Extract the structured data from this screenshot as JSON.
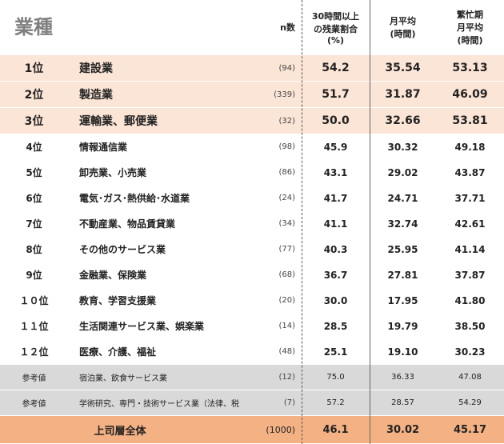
{
  "header": {
    "title": "業種",
    "n": "n数",
    "overtime": [
      "30時間以上",
      "の残業割合",
      "(%)"
    ],
    "avg": [
      "月平均",
      "(時間)"
    ],
    "busy": [
      "繁忙期",
      "月平均",
      "(時間)"
    ]
  },
  "top_rows": [
    {
      "rank": "1位",
      "name": "建設業",
      "n": "(94)",
      "overtime": "54.2",
      "avg": "35.54",
      "busy": "53.13"
    },
    {
      "rank": "2位",
      "name": "製造業",
      "n": "(339)",
      "overtime": "51.7",
      "avg": "31.87",
      "busy": "46.09"
    },
    {
      "rank": "3位",
      "name": "運輸業、郵便業",
      "n": "(32)",
      "overtime": "50.0",
      "avg": "32.66",
      "busy": "53.81"
    }
  ],
  "rows": [
    {
      "rank": "4位",
      "name": "情報通信業",
      "n": "(98)",
      "overtime": "45.9",
      "avg": "30.32",
      "busy": "49.18"
    },
    {
      "rank": "5位",
      "name": "卸売業、小売業",
      "n": "(86)",
      "overtime": "43.1",
      "avg": "29.02",
      "busy": "43.87"
    },
    {
      "rank": "6位",
      "name": "電気･ガス･熱供給･水道業",
      "n": "(24)",
      "overtime": "41.7",
      "avg": "24.71",
      "busy": "37.71"
    },
    {
      "rank": "7位",
      "name": "不動産業、物品賃貸業",
      "n": "(34)",
      "overtime": "41.1",
      "avg": "32.74",
      "busy": "42.61"
    },
    {
      "rank": "8位",
      "name": "その他のサービス業",
      "n": "(77)",
      "overtime": "40.3",
      "avg": "25.95",
      "busy": "41.14"
    },
    {
      "rank": "9位",
      "name": "金融業、保険業",
      "n": "(68)",
      "overtime": "36.7",
      "avg": "27.81",
      "busy": "37.87"
    },
    {
      "rank": "１０位",
      "name": "教育、学習支援業",
      "n": "(20)",
      "overtime": "30.0",
      "avg": "17.95",
      "busy": "41.80"
    },
    {
      "rank": "１１位",
      "name": "生活関連サービス業、娯楽業",
      "n": "(14)",
      "overtime": "28.5",
      "avg": "19.79",
      "busy": "38.50"
    },
    {
      "rank": "１２位",
      "name": "医療、介護、福祉",
      "n": "(48)",
      "overtime": "25.1",
      "avg": "19.10",
      "busy": "30.23"
    }
  ],
  "reference_rows": [
    {
      "rank": "参考値",
      "name": "宿泊業、飲食サービス業",
      "n": "(12)",
      "overtime": "75.0",
      "avg": "36.33",
      "busy": "47.08"
    },
    {
      "rank": "参考値",
      "name": "学術研究、専門・技術サービス業（法律、税",
      "n": "(7)",
      "overtime": "57.2",
      "avg": "28.57",
      "busy": "54.29"
    }
  ],
  "total": {
    "name": "上司層全体",
    "n": "(1000)",
    "overtime": "46.1",
    "avg": "30.02",
    "busy": "45.17"
  }
}
